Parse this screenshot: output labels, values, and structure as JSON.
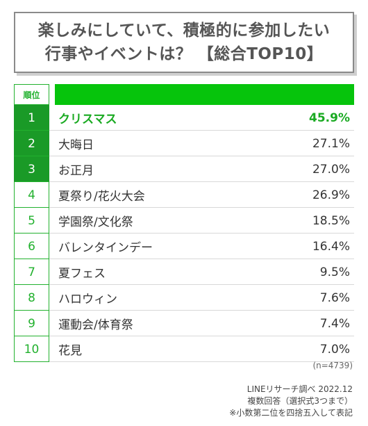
{
  "title": {
    "line1": "楽しみにしていて、積極的に参加したい",
    "line2": "行事やイベントは？ 【総合TOP10】"
  },
  "header": {
    "rank_label": "順位"
  },
  "colors": {
    "accent": "#06c40c",
    "rank_dark": "#1a9a27",
    "first_text": "#1aaa22"
  },
  "chart_data": {
    "type": "table",
    "columns": [
      "順位",
      "",
      ""
    ],
    "rows": [
      {
        "rank": "1",
        "label": "クリスマス",
        "value": "45.9%"
      },
      {
        "rank": "2",
        "label": "大晦日",
        "value": "27.1%"
      },
      {
        "rank": "3",
        "label": "お正月",
        "value": "27.0%"
      },
      {
        "rank": "4",
        "label": "夏祭り/花火大会",
        "value": "26.9%"
      },
      {
        "rank": "5",
        "label": "学園祭/文化祭",
        "value": "18.5%"
      },
      {
        "rank": "6",
        "label": "バレンタインデー",
        "value": "16.4%"
      },
      {
        "rank": "7",
        "label": "夏フェス",
        "value": "9.5%"
      },
      {
        "rank": "8",
        "label": "ハロウィン",
        "value": "7.6%"
      },
      {
        "rank": "9",
        "label": "運動会/体育祭",
        "value": "7.4%"
      },
      {
        "rank": "10",
        "label": "花見",
        "value": "7.0%"
      }
    ]
  },
  "footer": {
    "sample": "(n=4739)",
    "source": "LINEリサーチ調べ 2022.12",
    "method": "複数回答（選択式3つまで）",
    "rounding": "※小数第二位を四捨五入して表記"
  }
}
